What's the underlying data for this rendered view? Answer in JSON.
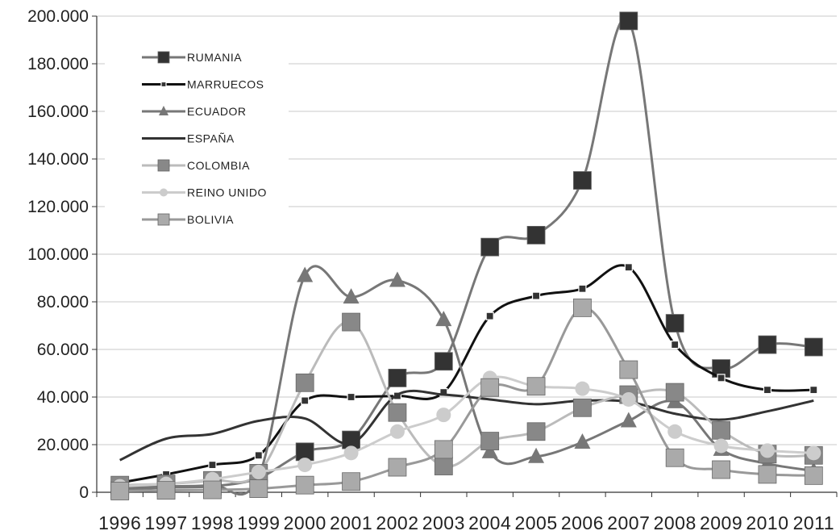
{
  "chart_data": {
    "type": "line",
    "title": "",
    "xlabel": "",
    "ylabel": "",
    "x": [
      "1996",
      "1997",
      "1998",
      "1999",
      "2000",
      "2001",
      "2002",
      "2003",
      "2004",
      "2005",
      "2006",
      "2007",
      "2008",
      "2009",
      "2010",
      "2011"
    ],
    "ylim": [
      0,
      200000
    ],
    "y_ticks": [
      "0",
      "20.000",
      "40.000",
      "60.000",
      "80.000",
      "100.000",
      "120.000",
      "140.000",
      "160.000",
      "180.000",
      "200.000"
    ],
    "grid": true,
    "legend_position": "top-left",
    "series": [
      {
        "name": "RUMANIA",
        "color": "#777777",
        "marker": "square",
        "marker_color": "#333333",
        "line_width": 3,
        "values": [
          1000,
          2000,
          2500,
          6000,
          17000,
          22000,
          48000,
          55000,
          103000,
          108000,
          131000,
          198000,
          71000,
          52000,
          62000,
          61000
        ]
      },
      {
        "name": "MARRUECOS",
        "color": "#111111",
        "marker": "small-square",
        "marker_color": "#333333",
        "line_width": 3,
        "values": [
          4000,
          7500,
          11500,
          15500,
          38500,
          40000,
          40500,
          42000,
          74000,
          82500,
          85500,
          94500,
          62000,
          48000,
          43000,
          43000
        ]
      },
      {
        "name": "ECUADOR",
        "color": "#777777",
        "marker": "triangle",
        "marker_color": "#777777",
        "line_width": 3,
        "values": [
          2000,
          2500,
          3000,
          6500,
          91000,
          82000,
          89000,
          72500,
          17000,
          15000,
          21000,
          30000,
          38000,
          18000,
          12000,
          9000
        ]
      },
      {
        "name": "ESPAÑA",
        "color": "#333333",
        "marker": "none",
        "marker_color": "#333333",
        "line_width": 3,
        "values": [
          13500,
          22500,
          24500,
          30000,
          31000,
          20500,
          41000,
          41000,
          39000,
          37000,
          38500,
          38000,
          33000,
          30500,
          34000,
          38500
        ]
      },
      {
        "name": "COLOMBIA",
        "color": "#bbbbbb",
        "marker": "square",
        "marker_color": "#888888",
        "line_width": 3,
        "values": [
          3000,
          3500,
          5000,
          8000,
          46000,
          71500,
          33500,
          11000,
          21500,
          25500,
          35500,
          41000,
          42000,
          26000,
          16000,
          15500
        ]
      },
      {
        "name": "REINO UNIDO",
        "color": "#cccccc",
        "marker": "circle",
        "marker_color": "#cccccc",
        "line_width": 3,
        "values": [
          2500,
          3500,
          5500,
          8500,
          11500,
          16500,
          25500,
          32500,
          48000,
          44500,
          43500,
          39000,
          25500,
          19500,
          17500,
          16500
        ]
      },
      {
        "name": "BOLIVIA",
        "color": "#999999",
        "marker": "square",
        "marker_color": "#aaaaaa",
        "line_width": 3,
        "values": [
          500,
          800,
          1000,
          1500,
          3000,
          4500,
          10500,
          18000,
          44000,
          44500,
          77500,
          51500,
          14500,
          9500,
          7500,
          7000
        ]
      }
    ]
  }
}
